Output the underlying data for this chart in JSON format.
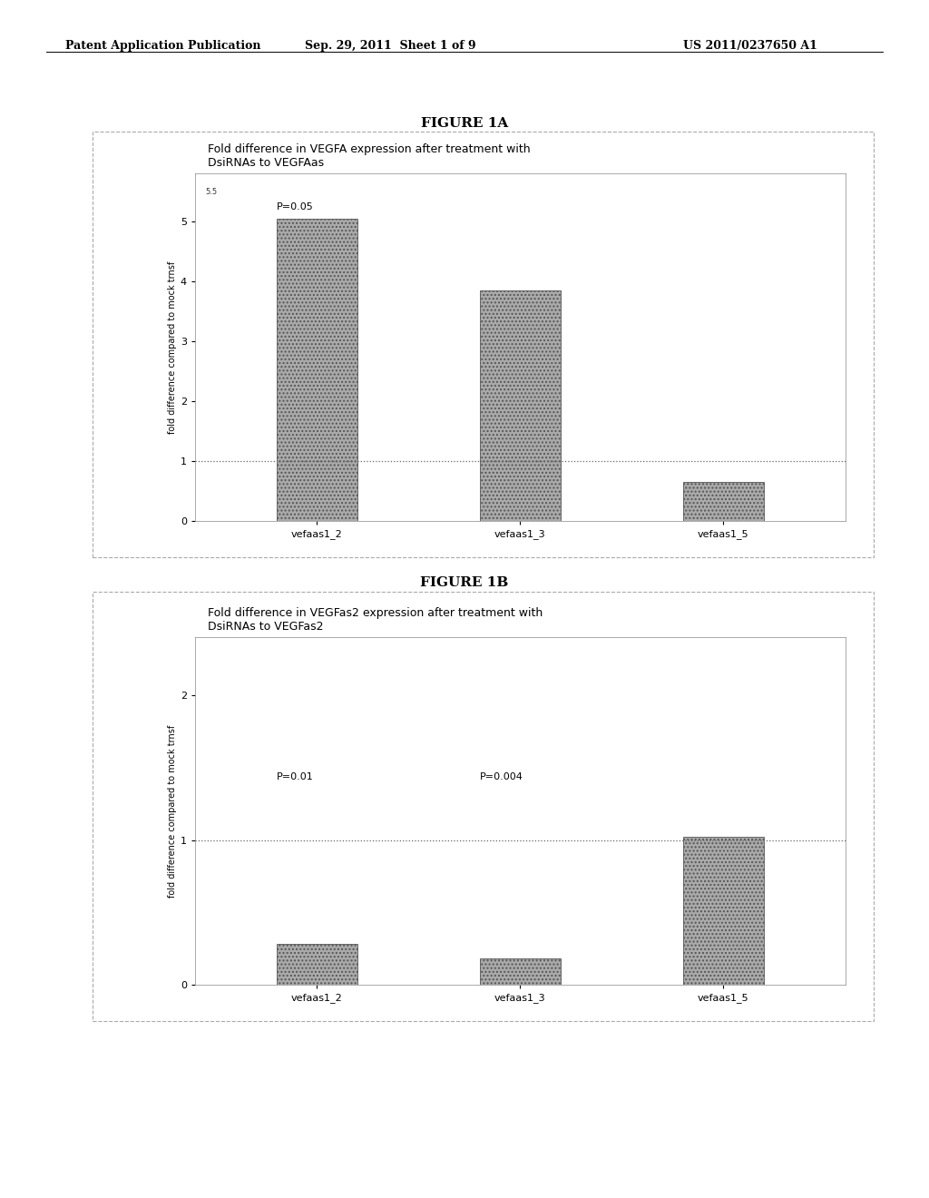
{
  "header_left": "Patent Application Publication",
  "header_center": "Sep. 29, 2011  Sheet 1 of 9",
  "header_right": "US 2011/0237650 A1",
  "fig1a_title": "FIGURE 1A",
  "fig1a_subtitle_line1": "Fold difference in VEGFA expression after treatment with",
  "fig1a_subtitle_line2": "DsiRNAs to VEGFAas",
  "fig1a_ylabel": "fold difference compared to mock trnsf",
  "fig1a_categories": [
    "vefaas1_2",
    "vefaas1_3",
    "vefaas1_5"
  ],
  "fig1a_values": [
    5.05,
    3.85,
    0.65
  ],
  "fig1a_ylim": [
    0,
    5.8
  ],
  "fig1a_yticks": [
    0,
    1,
    2,
    3,
    4,
    5
  ],
  "fig1a_yticklabel_extra": "5.5",
  "fig1a_hline": 1.0,
  "fig1a_p_annotation": "P=0.05",
  "fig1a_p_ann_xi": 0,
  "fig1a_p_ann_yi": 5.2,
  "fig1b_title": "FIGURE 1B",
  "fig1b_subtitle_line1": "Fold difference in VEGFas2 expression after treatment with",
  "fig1b_subtitle_line2": "DsiRNAs to VEGFas2",
  "fig1b_ylabel": "fold difference compared to mock trnsf",
  "fig1b_categories": [
    "vefaas1_2",
    "vefaas1_3",
    "vefaas1_5"
  ],
  "fig1b_values": [
    0.28,
    0.18,
    1.02
  ],
  "fig1b_ylim": [
    0,
    2.4
  ],
  "fig1b_yticks": [
    0,
    1,
    2
  ],
  "fig1b_hline": 1.0,
  "fig1b_annotations": [
    [
      "P=0.01",
      0,
      1.42
    ],
    [
      "P=0.004",
      1,
      1.42
    ]
  ],
  "bar_color": "#aaaaaa",
  "bar_edgecolor": "#555555",
  "background_color": "#ffffff",
  "hline_color": "#666666",
  "hline_style": "dotted",
  "header_fontsize": 9,
  "figure_label_fontsize": 11,
  "subtitle_fontsize": 9,
  "ylabel_fontsize": 7,
  "tick_fontsize": 8,
  "annotation_fontsize": 8,
  "bar_width": 0.4
}
